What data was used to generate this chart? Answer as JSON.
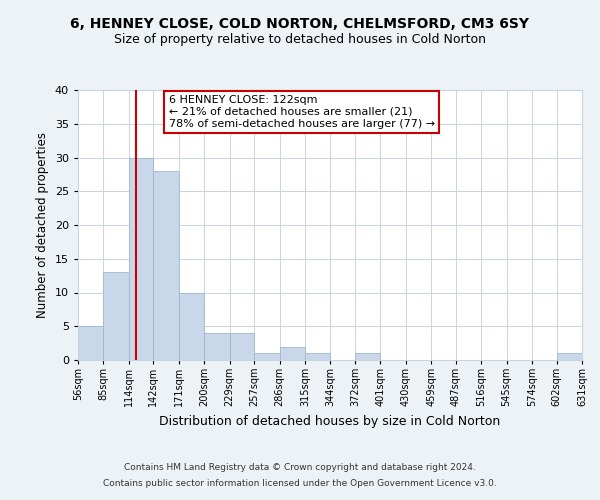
{
  "title1": "6, HENNEY CLOSE, COLD NORTON, CHELMSFORD, CM3 6SY",
  "title2": "Size of property relative to detached houses in Cold Norton",
  "xlabel": "Distribution of detached houses by size in Cold Norton",
  "ylabel": "Number of detached properties",
  "bar_edges": [
    56,
    85,
    114,
    142,
    171,
    200,
    229,
    257,
    286,
    315,
    344,
    372,
    401,
    430,
    459,
    487,
    516,
    545,
    574,
    602,
    631
  ],
  "bar_heights": [
    5,
    13,
    30,
    28,
    10,
    4,
    4,
    1,
    2,
    1,
    0,
    1,
    0,
    0,
    0,
    0,
    0,
    0,
    0,
    1
  ],
  "bar_color": "#c8d8ea",
  "bar_edge_color": "#a0b8cc",
  "vline_x": 122,
  "vline_color": "#cc0000",
  "ylim": [
    0,
    40
  ],
  "yticks": [
    0,
    5,
    10,
    15,
    20,
    25,
    30,
    35,
    40
  ],
  "tick_labels": [
    "56sqm",
    "85sqm",
    "114sqm",
    "142sqm",
    "171sqm",
    "200sqm",
    "229sqm",
    "257sqm",
    "286sqm",
    "315sqm",
    "344sqm",
    "372sqm",
    "401sqm",
    "430sqm",
    "459sqm",
    "487sqm",
    "516sqm",
    "545sqm",
    "574sqm",
    "602sqm",
    "631sqm"
  ],
  "annotation_line1": "6 HENNEY CLOSE: 122sqm",
  "annotation_line2": "← 21% of detached houses are smaller (21)",
  "annotation_line3": "78% of semi-detached houses are larger (77) →",
  "footer1": "Contains HM Land Registry data © Crown copyright and database right 2024.",
  "footer2": "Contains public sector information licensed under the Open Government Licence v3.0.",
  "bg_color": "#edf2f7",
  "plot_bg_color": "#ffffff",
  "grid_color": "#c8d4de"
}
